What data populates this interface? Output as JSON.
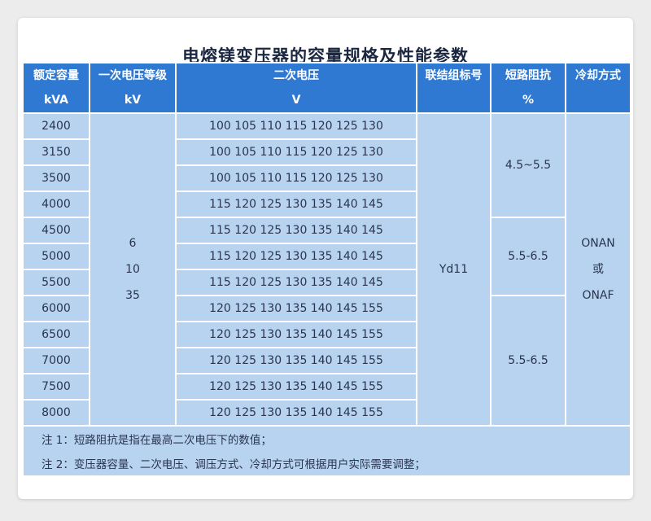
{
  "title": "电熔镁变压器的容量规格及性能参数",
  "header": [
    {
      "line1": "额定容量",
      "line2": "kVA"
    },
    {
      "line1": "一次电压等级",
      "line2": "kV"
    },
    {
      "line1": "二次电压",
      "line2": "V"
    },
    {
      "line1": "联结组标号",
      "line2": ""
    },
    {
      "line1": "短路阻抗",
      "line2": "%"
    },
    {
      "line1": "冷却方式",
      "line2": ""
    }
  ],
  "rows": [
    {
      "capacity": "2400",
      "secondary": "100 105 110 115 120 125 130"
    },
    {
      "capacity": "3150",
      "secondary": "100 105 110 115 120 125 130"
    },
    {
      "capacity": "3500",
      "secondary": "100 105 110 115 120 125 130"
    },
    {
      "capacity": "4000",
      "secondary": "115 120 125 130 135 140 145"
    },
    {
      "capacity": "4500",
      "secondary": "115 120 125 130 135 140 145"
    },
    {
      "capacity": "5000",
      "secondary": "115 120 125 130 135 140 145"
    },
    {
      "capacity": "5500",
      "secondary": "115 120 125 130 135 140 145"
    },
    {
      "capacity": "6000",
      "secondary": "120 125 130 135 140 145 155"
    },
    {
      "capacity": "6500",
      "secondary": "120 125 130 135 140 145 155"
    },
    {
      "capacity": "7000",
      "secondary": "120 125 130 135 140 145 155"
    },
    {
      "capacity": "7500",
      "secondary": "120 125 130 135 140 145 155"
    },
    {
      "capacity": "8000",
      "secondary": "120 125 130 135 140 145 155"
    }
  ],
  "primary_voltage": [
    "6",
    "10",
    "35"
  ],
  "connection_group": "Yd11",
  "impedance_groups": [
    {
      "value": "4.5~5.5",
      "rows": 4
    },
    {
      "value": "5.5-6.5",
      "rows": 3
    },
    {
      "value": "5.5-6.5",
      "rows": 5
    }
  ],
  "cooling": [
    "ONAN",
    "或",
    "ONAF"
  ],
  "notes": [
    "注 1：短路阻抗是指在最高二次电压下的数值；",
    "注 2：变压器容量、二次电压、调压方式、冷却方式可根据用户实际需要调整；"
  ]
}
